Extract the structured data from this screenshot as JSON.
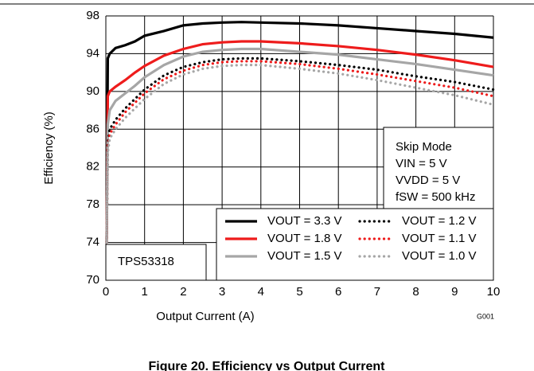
{
  "chart_data": {
    "type": "line",
    "title": "Figure 20. Efficiency vs Output Current",
    "x_label": "Output Current (A)",
    "y_label": "Efficiency (%)",
    "figure_id": "G001",
    "device_label": "TPS53318",
    "annotation": [
      "Skip Mode",
      "VIN = 5 V",
      "VVDD = 5 V",
      "fSW = 500 kHz"
    ],
    "x": [
      0.02,
      0.05,
      0.1,
      0.25,
      0.5,
      0.75,
      1,
      1.5,
      2,
      2.5,
      3,
      3.5,
      4,
      5,
      6,
      7,
      8,
      9,
      10
    ],
    "xlim": [
      0,
      10
    ],
    "xticks": [
      0,
      1,
      2,
      3,
      4,
      5,
      6,
      7,
      8,
      9,
      10
    ],
    "ylim": [
      70,
      98
    ],
    "yticks": [
      70,
      74,
      78,
      82,
      86,
      90,
      94,
      98
    ],
    "grid": true,
    "legend": "lower right",
    "series": [
      {
        "name": "VOUT = 3.3 V",
        "color": "#000000",
        "style": "solid",
        "values": [
          74,
          93.5,
          94,
          94.6,
          94.9,
          95.3,
          95.9,
          96.4,
          97.0,
          97.2,
          97.3,
          97.35,
          97.3,
          97.2,
          97.0,
          96.7,
          96.4,
          96.1,
          95.7
        ]
      },
      {
        "name": "VOUT = 1.8 V",
        "color": "#ee1c1c",
        "style": "solid",
        "values": [
          74,
          89.5,
          90,
          90.5,
          91.2,
          92.0,
          92.7,
          93.8,
          94.5,
          95.0,
          95.2,
          95.3,
          95.3,
          95.1,
          94.8,
          94.4,
          93.9,
          93.3,
          92.6
        ]
      },
      {
        "name": "VOUT = 1.5 V",
        "color": "#a6a6a6",
        "style": "solid",
        "values": [
          74,
          86.5,
          88,
          89,
          89.8,
          90.6,
          91.5,
          92.8,
          93.7,
          94.2,
          94.4,
          94.5,
          94.5,
          94.2,
          93.9,
          93.4,
          92.9,
          92.3,
          91.7
        ]
      },
      {
        "name": "VOUT = 1.2 V",
        "color": "#000000",
        "style": "dotted",
        "values": [
          74,
          84.5,
          86,
          87,
          88.2,
          89.2,
          90.2,
          91.7,
          92.6,
          93.1,
          93.4,
          93.5,
          93.5,
          93.2,
          92.8,
          92.3,
          91.6,
          91.0,
          90.2
        ]
      },
      {
        "name": "VOUT = 1.1 V",
        "color": "#ee1c1c",
        "style": "dotted",
        "values": [
          74,
          84,
          85.5,
          86.5,
          87.8,
          88.8,
          89.8,
          91.3,
          92.2,
          92.8,
          93.1,
          93.2,
          93.2,
          92.9,
          92.4,
          91.8,
          91.1,
          90.4,
          89.5
        ]
      },
      {
        "name": "VOUT = 1.0 V",
        "color": "#a6a6a6",
        "style": "dotted",
        "values": [
          74,
          83.5,
          85,
          86,
          87.2,
          88.2,
          89.2,
          90.8,
          91.8,
          92.4,
          92.7,
          92.8,
          92.8,
          92.4,
          91.9,
          91.2,
          90.4,
          89.6,
          88.6
        ]
      }
    ]
  }
}
